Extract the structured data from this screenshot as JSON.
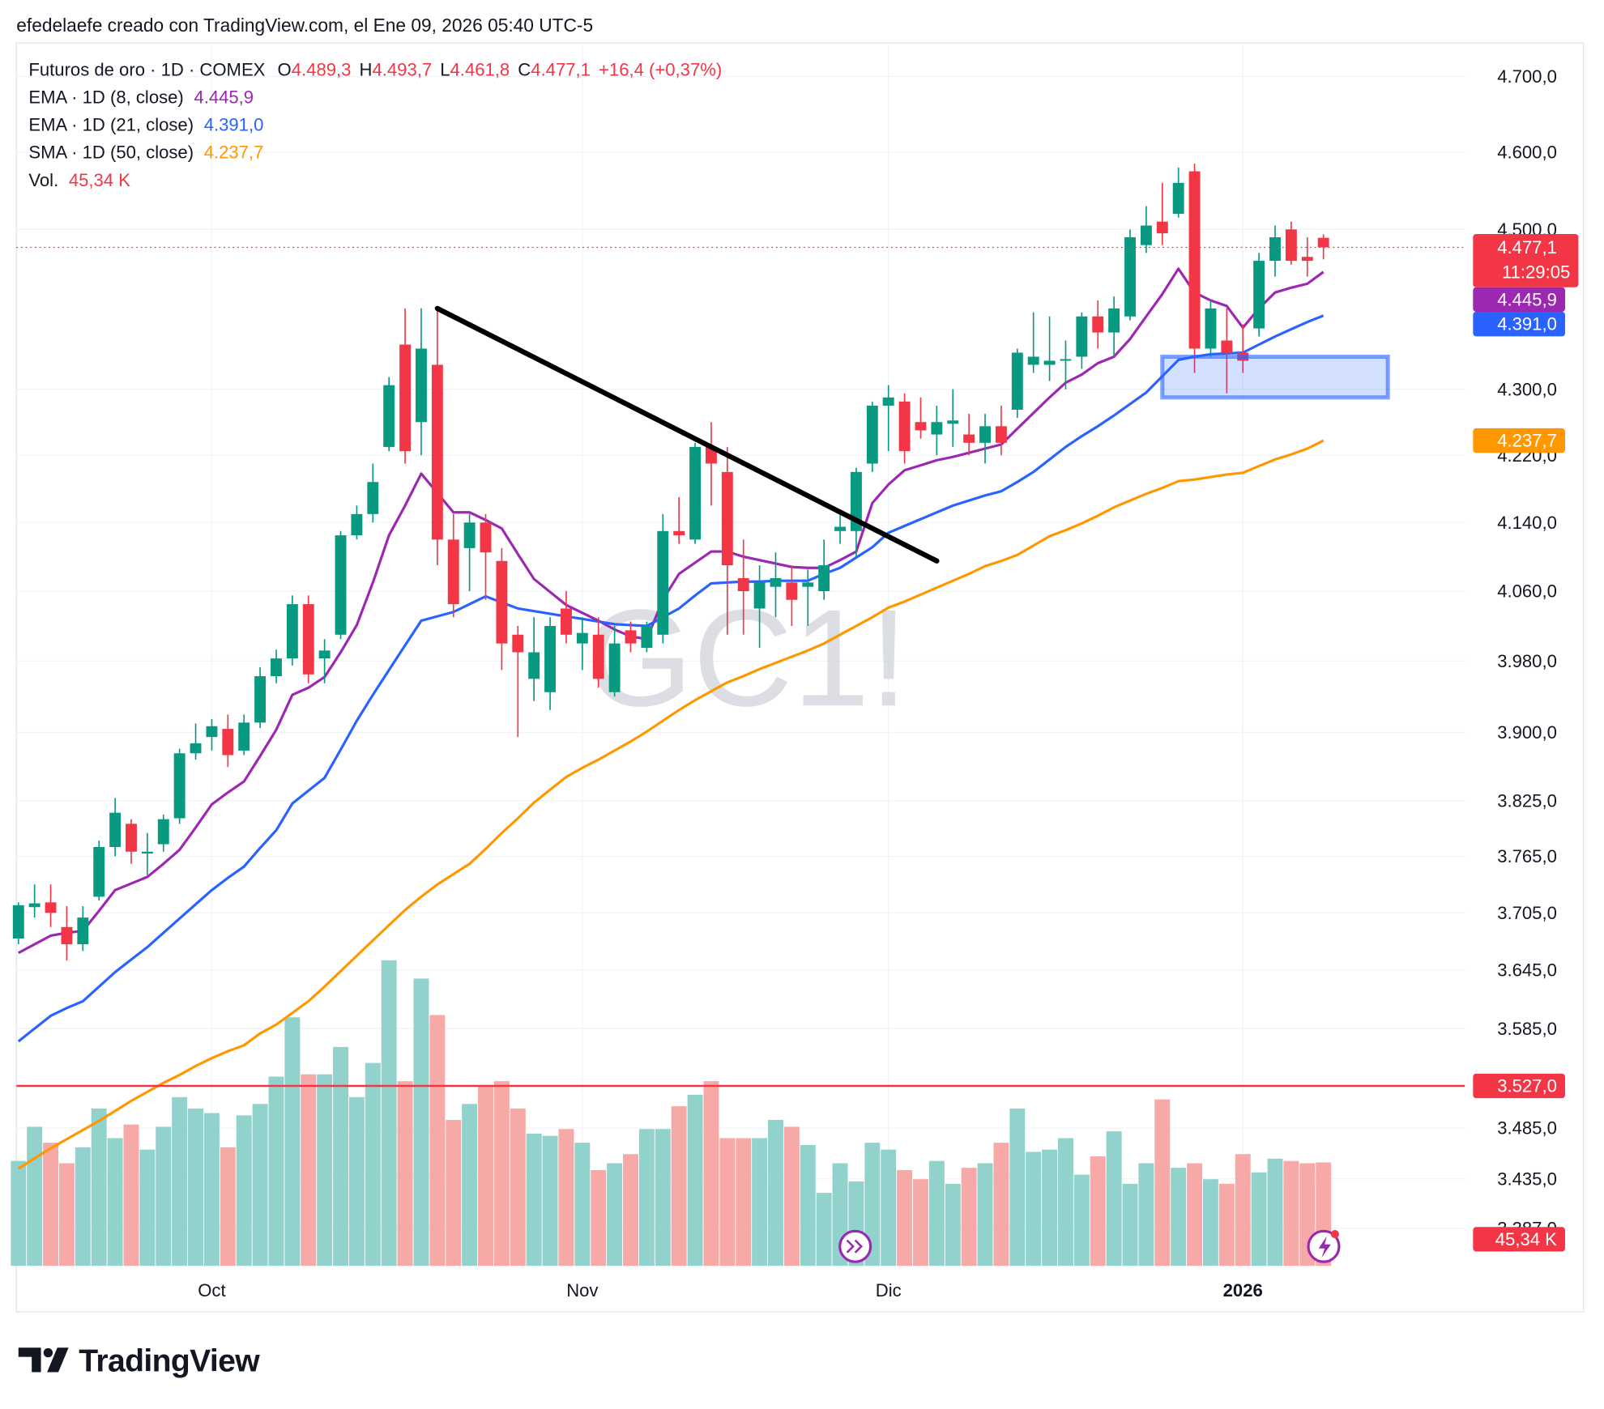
{
  "header": {
    "attribution": "efedelaefe creado con TradingView.com, el Ene 09, 2026 05:40 UTC-5"
  },
  "footer": {
    "brand": "TradingView"
  },
  "chart_data": {
    "type": "candlestick",
    "title": "Futuros de oro · 1D · COMEX",
    "ohlc_legend": [
      {
        "key": "O",
        "value": "4.489,3"
      },
      {
        "key": "H",
        "value": "4.493,7"
      },
      {
        "key": "L",
        "value": "4.461,8"
      },
      {
        "key": "C",
        "value": "4.477,1"
      }
    ],
    "change": "+16,4 (+0,37%)",
    "legend_color": "#f23645",
    "watermark": "GC1!",
    "log_scale": true,
    "grid": true,
    "up_color": "#089981",
    "down_color": "#f23645",
    "open": [
      3678,
      3711,
      3716,
      3690,
      3672,
      3722,
      3775,
      3800,
      3768,
      3778,
      3806,
      3877,
      3895,
      3904,
      3880,
      3911,
      3963,
      3983,
      4045,
      3983,
      4010,
      4125,
      4150,
      4230,
      4355,
      4260,
      4330,
      4120,
      4110,
      4140,
      4095,
      4010,
      3960,
      3945,
      4040,
      4000,
      4010,
      3945,
      4015,
      3995,
      4010,
      4130,
      4120,
      4230,
      4200,
      4075,
      4040,
      4065,
      4070,
      4065,
      4060,
      4130,
      4130,
      4210,
      4280,
      4285,
      4260,
      4245,
      4258,
      4245,
      4235,
      4255,
      4275,
      4330,
      4330,
      4335,
      4340,
      4390,
      4370,
      4390,
      4480,
      4510,
      4520,
      4575,
      4350,
      4360,
      4345,
      4375,
      4460,
      4500,
      4465,
      4489.3
    ],
    "high": [
      3716,
      3735,
      3735,
      3712,
      3712,
      3782,
      3828,
      3805,
      3790,
      3810,
      3882,
      3910,
      3915,
      3920,
      3920,
      3973,
      3993,
      4055,
      4055,
      4005,
      4130,
      4160,
      4210,
      4315,
      4400,
      4400,
      4400,
      4150,
      4150,
      4150,
      4110,
      4020,
      4030,
      4030,
      4060,
      4030,
      4030,
      4020,
      4025,
      4025,
      4150,
      4170,
      4235,
      4260,
      4230,
      4120,
      4090,
      4105,
      4090,
      4085,
      4120,
      4150,
      4205,
      4285,
      4305,
      4295,
      4290,
      4280,
      4300,
      4270,
      4270,
      4280,
      4350,
      4395,
      4390,
      4360,
      4395,
      4410,
      4415,
      4500,
      4530,
      4560,
      4580,
      4585,
      4410,
      4400,
      4380,
      4470,
      4505,
      4510,
      4490,
      4493.7
    ],
    "low": [
      3672,
      3700,
      3690,
      3655,
      3665,
      3718,
      3765,
      3757,
      3745,
      3770,
      3800,
      3870,
      3880,
      3862,
      3875,
      3905,
      3955,
      3975,
      3955,
      3955,
      4005,
      4120,
      4140,
      4225,
      4210,
      4220,
      4090,
      4030,
      4060,
      4050,
      3970,
      3895,
      3935,
      3925,
      4000,
      3970,
      3950,
      3940,
      3990,
      3990,
      4000,
      4115,
      4115,
      4160,
      4010,
      4010,
      3995,
      4030,
      4020,
      4020,
      4050,
      4115,
      4100,
      4200,
      4225,
      4210,
      4240,
      4220,
      4230,
      4220,
      4210,
      4220,
      4265,
      4320,
      4310,
      4300,
      4325,
      4350,
      4340,
      4385,
      4470,
      4480,
      4515,
      4320,
      4340,
      4295,
      4320,
      4365,
      4440,
      4455,
      4440,
      4461.8
    ],
    "close": [
      3713,
      3715,
      3705,
      3672,
      3700,
      3775,
      3812,
      3770,
      3770,
      3805,
      3877,
      3888,
      3907,
      3875,
      3911,
      3963,
      3983,
      4045,
      3965,
      3992,
      4125,
      4150,
      4188,
      4305,
      4225,
      4350,
      4120,
      4045,
      4140,
      4105,
      4000,
      3990,
      3990,
      4020,
      4010,
      4012,
      3960,
      4000,
      4000,
      4020,
      4130,
      4125,
      4230,
      4210,
      4090,
      4060,
      4070,
      4075,
      4050,
      4070,
      4090,
      4135,
      4200,
      4280,
      4290,
      4225,
      4250,
      4260,
      4262,
      4235,
      4255,
      4235,
      4345,
      4340,
      4335,
      4337,
      4390,
      4370,
      4400,
      4490,
      4505,
      4495,
      4560,
      4350,
      4400,
      4345,
      4335,
      4460,
      4490,
      4460,
      4460,
      4477.1
    ],
    "volume": {
      "name": "Vol.",
      "value_label": "45,34 K",
      "up_color": "#92d2cc",
      "down_color": "#f7a9a7",
      "lim": [
        0,
        535
      ],
      "values": [
        46,
        61,
        54,
        45,
        52,
        69,
        56,
        62,
        51,
        61,
        74,
        69,
        67,
        52,
        66,
        71,
        83,
        109,
        84,
        84,
        96,
        74,
        89,
        134,
        81,
        126,
        110,
        64,
        71,
        79,
        81,
        69,
        58,
        57,
        60,
        54,
        42,
        45,
        49,
        60,
        60,
        70,
        75,
        81,
        56,
        56,
        56,
        64,
        61,
        53,
        32,
        45,
        37,
        54,
        51,
        42,
        38,
        46,
        36,
        43,
        45,
        54,
        69,
        50,
        51,
        56,
        40,
        48,
        59,
        36,
        45,
        73,
        43,
        45,
        38,
        36,
        49,
        41,
        47,
        46,
        45,
        45.34
      ]
    },
    "indicators": [
      {
        "name": "EMA · 1D (8, close)",
        "color": "#9c27b0",
        "value_label": "4.445,9",
        "values": [
          3663,
          3672,
          3681,
          3684,
          3686,
          3707,
          3729,
          3736,
          3743,
          3757,
          3772,
          3796,
          3821,
          3834,
          3846,
          3874,
          3903,
          3942,
          3950,
          3962,
          3990,
          4021,
          4070,
          4125,
          4160,
          4198,
          4175,
          4152,
          4152,
          4143,
          4133,
          4103,
          4074,
          4059,
          4044,
          4035,
          4026,
          4016,
          4008,
          4005,
          4050,
          4080,
          4093,
          4106,
          4106,
          4100,
          4096,
          4092,
          4088,
          4087,
          4087,
          4096,
          4106,
          4163,
          4185,
          4202,
          4208,
          4214,
          4218,
          4223,
          4228,
          4233,
          4252,
          4271,
          4290,
          4308,
          4318,
          4332,
          4340,
          4362,
          4390,
          4418,
          4450,
          4420,
          4410,
          4403,
          4376,
          4400,
          4420,
          4426,
          4431,
          4445.9
        ]
      },
      {
        "name": "EMA · 1D (21, close)",
        "color": "#2962ff",
        "value_label": "4.391,0",
        "values": [
          3572,
          3585,
          3598,
          3606,
          3613,
          3628,
          3643,
          3656,
          3669,
          3684,
          3699,
          3714,
          3729,
          3742,
          3754,
          3774,
          3793,
          3822,
          3836,
          3850,
          3881,
          3913,
          3942,
          3970,
          3998,
          4026,
          4031,
          4036,
          4045,
          4054,
          4047,
          4040,
          4037,
          4034,
          4031,
          4028,
          4025,
          4022,
          4021,
          4020,
          4030,
          4040,
          4055,
          4069,
          4070,
          4071,
          4071,
          4072,
          4072,
          4072,
          4080,
          4087,
          4099,
          4111,
          4128,
          4136,
          4144,
          4152,
          4160,
          4166,
          4172,
          4177,
          4188,
          4200,
          4215,
          4230,
          4243,
          4255,
          4268,
          4282,
          4296,
          4316,
          4336,
          4340,
          4343,
          4344,
          4345,
          4355,
          4365,
          4374,
          4383,
          4391.0
        ]
      },
      {
        "name": "SMA · 1D (50, close)",
        "color": "#ff9800",
        "value_label": "4.237,7",
        "values": [
          3445,
          3455,
          3465,
          3474,
          3483,
          3492,
          3502,
          3512,
          3521,
          3530,
          3538,
          3547,
          3555,
          3562,
          3568,
          3580,
          3589,
          3601,
          3613,
          3628,
          3644,
          3660,
          3676,
          3692,
          3708,
          3722,
          3735,
          3746,
          3757,
          3773,
          3790,
          3806,
          3823,
          3837,
          3851,
          3861,
          3870,
          3880,
          3890,
          3901,
          3913,
          3925,
          3936,
          3946,
          3956,
          3963,
          3971,
          3978,
          3985,
          3992,
          4000,
          4010,
          4020,
          4030,
          4041,
          4048,
          4056,
          4064,
          4072,
          4080,
          4089,
          4095,
          4102,
          4113,
          4124,
          4131,
          4139,
          4148,
          4158,
          4166,
          4174,
          4181,
          4189,
          4191,
          4194,
          4197,
          4199,
          4207,
          4215,
          4221,
          4228,
          4237.7
        ]
      }
    ],
    "last_price": {
      "value": 4477.1,
      "label": "4.477,1",
      "countdown": "11:29:05",
      "color": "#f23645"
    },
    "hline": {
      "value": 3527,
      "label": "3.527,0",
      "color": "#f23645"
    },
    "drawings": {
      "trendline": {
        "from": [
          26,
          4400
        ],
        "to": [
          57,
          4095
        ],
        "color": "#000000"
      },
      "box": {
        "x": [
          71,
          85
        ],
        "y": [
          4290,
          4340
        ],
        "color": "#2962ff"
      }
    },
    "ylim": [
      3351,
      4741
    ],
    "yticks": [
      {
        "value": 4700,
        "label": "4.700,0"
      },
      {
        "value": 4600,
        "label": "4.600,0"
      },
      {
        "value": 4500,
        "label": "4.500,0"
      },
      {
        "value": 4300,
        "label": "4.300,0"
      },
      {
        "value": 4220,
        "label": "4.220,0"
      },
      {
        "value": 4140,
        "label": "4.140,0"
      },
      {
        "value": 4060,
        "label": "4.060,0"
      },
      {
        "value": 3980,
        "label": "3.980,0"
      },
      {
        "value": 3900,
        "label": "3.900,0"
      },
      {
        "value": 3825,
        "label": "3.825,0"
      },
      {
        "value": 3765,
        "label": "3.765,0"
      },
      {
        "value": 3705,
        "label": "3.705,0"
      },
      {
        "value": 3645,
        "label": "3.645,0"
      },
      {
        "value": 3585,
        "label": "3.585,0"
      },
      {
        "value": 3485,
        "label": "3.485,0"
      },
      {
        "value": 3435,
        "label": "3.435,0"
      },
      {
        "value": 3387,
        "label": "3.387,0"
      }
    ],
    "xticks": [
      {
        "value": 12,
        "label": "Oct"
      },
      {
        "value": 35,
        "label": "Nov"
      },
      {
        "value": 54,
        "label": "Dic"
      },
      {
        "value": 76,
        "label": "2026"
      }
    ]
  }
}
